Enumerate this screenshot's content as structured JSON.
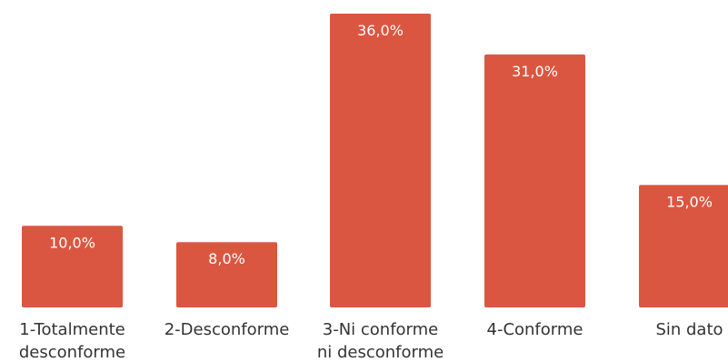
{
  "chart_data": {
    "type": "bar",
    "categories": [
      [
        "1-Totalmente",
        "desconforme"
      ],
      [
        "2-Desconforme"
      ],
      [
        "3-Ni conforme",
        "ni desconforme"
      ],
      [
        "4-Conforme"
      ],
      [
        "Sin dato"
      ]
    ],
    "values": [
      10.0,
      8.0,
      36.0,
      31.0,
      15.0
    ],
    "data_labels": [
      "10,0%",
      "8,0%",
      "36,0%",
      "31,0%",
      "15,0%"
    ],
    "ylim": [
      0,
      36
    ],
    "grid": false,
    "bar_color": "#db5640",
    "label_color": "#ffffff",
    "category_label_color": "#333333"
  }
}
